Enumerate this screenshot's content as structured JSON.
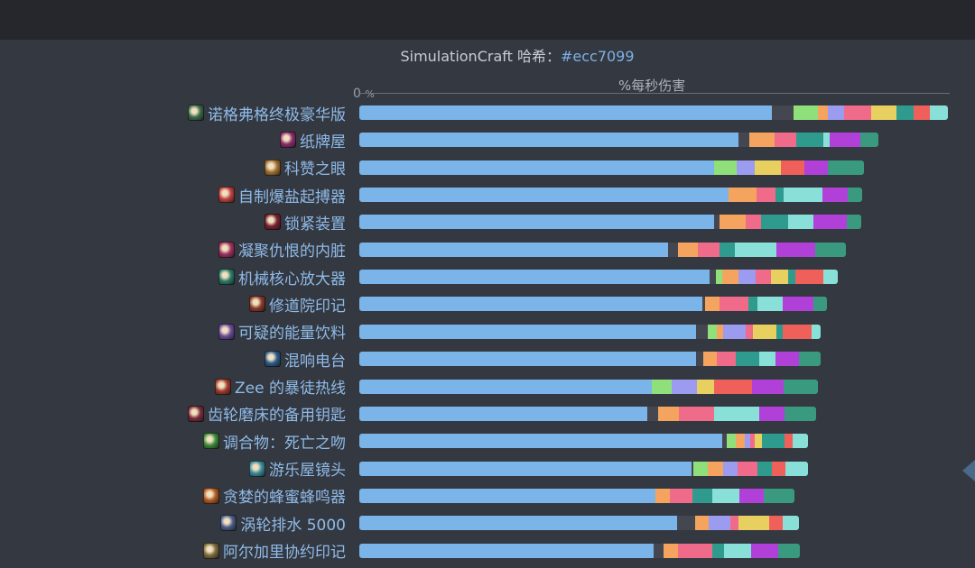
{
  "header": {
    "subtitle_text": "SimulationCraft 哈希：",
    "subtitle_hash": "#ecc7099"
  },
  "chart_data": {
    "type": "bar",
    "orientation": "horizontal",
    "stacked": true,
    "x_axis_label": "%每秒伤害",
    "x_zero_label": "0",
    "x_unit_label": "%",
    "grid": false,
    "categories": [
      "诺格弗格终极豪华版",
      "纸牌屋",
      "科赞之眼",
      "自制爆盐起搏器",
      "锁紧装置",
      "凝聚仇恨的内脏",
      "机械核心放大器",
      "修道院印记",
      "可疑的能量饮料",
      "混响电台",
      "Zee 的暴徒热线",
      "齿轮磨床的备用钥匙",
      "调合物：死亡之吻",
      "游乐屋镜头",
      "贪婪的蜂蜜蜂鸣器",
      "涡轮排水 5000",
      "阿尔加里协约印记"
    ],
    "icon_colors": [
      "#3a6a4a",
      "#8a2a6a",
      "#a07030",
      "#c04040",
      "#7a2030",
      "#a03060",
      "#2a7a6a",
      "#8a3a2a",
      "#6a4a9a",
      "#2a5a8a",
      "#a03a2a",
      "#7a2a3a",
      "#3a8a3a",
      "#3a8a9a",
      "#b05a20",
      "#4a5a8a",
      "#7a6a3a"
    ],
    "segment_colors": [
      "#7ab4e8",
      "#44474f",
      "#8fe07a",
      "#f4a45e",
      "#9b9bf0",
      "#f06a8a",
      "#e8d060",
      "#2e9b8e",
      "#f0605a",
      "#88e0d8",
      "#b040d8",
      "#3a9a80"
    ],
    "bars": [
      {
        "segments": [
          [
            0,
            457
          ],
          [
            1,
            24
          ],
          [
            2,
            27
          ],
          [
            3,
            11
          ],
          [
            4,
            18
          ],
          [
            5,
            30
          ],
          [
            6,
            28
          ],
          [
            7,
            19
          ],
          [
            8,
            18
          ],
          [
            9,
            20
          ]
        ]
      },
      {
        "segments": [
          [
            0,
            420
          ],
          [
            1,
            12
          ],
          [
            3,
            28
          ],
          [
            5,
            24
          ],
          [
            7,
            30
          ],
          [
            9,
            7
          ],
          [
            10,
            34
          ],
          [
            11,
            20
          ]
        ]
      },
      {
        "segments": [
          [
            0,
            393
          ],
          [
            2,
            25
          ],
          [
            4,
            20
          ],
          [
            6,
            29
          ],
          [
            8,
            26
          ],
          [
            10,
            26
          ],
          [
            11,
            40
          ]
        ]
      },
      {
        "segments": [
          [
            0,
            409
          ],
          [
            3,
            31
          ],
          [
            5,
            21
          ],
          [
            7,
            9
          ],
          [
            9,
            43
          ],
          [
            10,
            28
          ],
          [
            11,
            16
          ]
        ]
      },
      {
        "segments": [
          [
            0,
            393
          ],
          [
            1,
            6
          ],
          [
            3,
            29
          ],
          [
            5,
            17
          ],
          [
            7,
            30
          ],
          [
            9,
            28
          ],
          [
            10,
            37
          ],
          [
            11,
            16
          ]
        ]
      },
      {
        "segments": [
          [
            0,
            342
          ],
          [
            1,
            11
          ],
          [
            3,
            22
          ],
          [
            5,
            24
          ],
          [
            7,
            17
          ],
          [
            9,
            46
          ],
          [
            10,
            43
          ],
          [
            11,
            34
          ]
        ]
      },
      {
        "segments": [
          [
            0,
            388
          ],
          [
            1,
            7
          ],
          [
            2,
            7
          ],
          [
            3,
            18
          ],
          [
            4,
            19
          ],
          [
            5,
            17
          ],
          [
            6,
            19
          ],
          [
            7,
            8
          ],
          [
            8,
            31
          ],
          [
            9,
            16
          ]
        ]
      },
      {
        "segments": [
          [
            0,
            380
          ],
          [
            1,
            3
          ],
          [
            3,
            16
          ],
          [
            5,
            32
          ],
          [
            7,
            10
          ],
          [
            9,
            28
          ],
          [
            10,
            34
          ],
          [
            11,
            15
          ]
        ]
      },
      {
        "segments": [
          [
            0,
            373
          ],
          [
            1,
            13
          ],
          [
            2,
            10
          ],
          [
            3,
            7
          ],
          [
            4,
            25
          ],
          [
            5,
            8
          ],
          [
            6,
            26
          ],
          [
            7,
            7
          ],
          [
            8,
            32
          ],
          [
            9,
            10
          ]
        ]
      },
      {
        "segments": [
          [
            0,
            373
          ],
          [
            1,
            8
          ],
          [
            3,
            15
          ],
          [
            5,
            21
          ],
          [
            7,
            26
          ],
          [
            9,
            18
          ],
          [
            10,
            26
          ],
          [
            11,
            24
          ]
        ]
      },
      {
        "segments": [
          [
            0,
            324
          ],
          [
            2,
            22
          ],
          [
            4,
            28
          ],
          [
            6,
            19
          ],
          [
            8,
            42
          ],
          [
            10,
            35
          ],
          [
            11,
            38
          ]
        ]
      },
      {
        "segments": [
          [
            0,
            319
          ],
          [
            1,
            12
          ],
          [
            3,
            23
          ],
          [
            5,
            39
          ],
          [
            9,
            50
          ],
          [
            10,
            28
          ],
          [
            11,
            35
          ]
        ]
      },
      {
        "segments": [
          [
            0,
            402
          ],
          [
            1,
            5
          ],
          [
            2,
            10
          ],
          [
            3,
            10
          ],
          [
            4,
            6
          ],
          [
            5,
            5
          ],
          [
            6,
            8
          ],
          [
            7,
            25
          ],
          [
            8,
            9
          ],
          [
            9,
            17
          ]
        ]
      },
      {
        "segments": [
          [
            0,
            368
          ],
          [
            1,
            2
          ],
          [
            2,
            16
          ],
          [
            3,
            17
          ],
          [
            4,
            16
          ],
          [
            5,
            22
          ],
          [
            7,
            16
          ],
          [
            8,
            15
          ],
          [
            9,
            25
          ]
        ]
      },
      {
        "segments": [
          [
            0,
            328
          ],
          [
            3,
            16
          ],
          [
            5,
            25
          ],
          [
            7,
            22
          ],
          [
            9,
            30
          ],
          [
            10,
            27
          ],
          [
            11,
            34
          ]
        ]
      },
      {
        "segments": [
          [
            0,
            352
          ],
          [
            1,
            20
          ],
          [
            3,
            15
          ],
          [
            4,
            24
          ],
          [
            5,
            9
          ],
          [
            6,
            34
          ],
          [
            8,
            15
          ],
          [
            9,
            18
          ]
        ]
      },
      {
        "segments": [
          [
            0,
            326
          ],
          [
            1,
            11
          ],
          [
            3,
            16
          ],
          [
            5,
            38
          ],
          [
            7,
            13
          ],
          [
            9,
            30
          ],
          [
            10,
            30
          ],
          [
            11,
            24
          ]
        ]
      }
    ]
  }
}
